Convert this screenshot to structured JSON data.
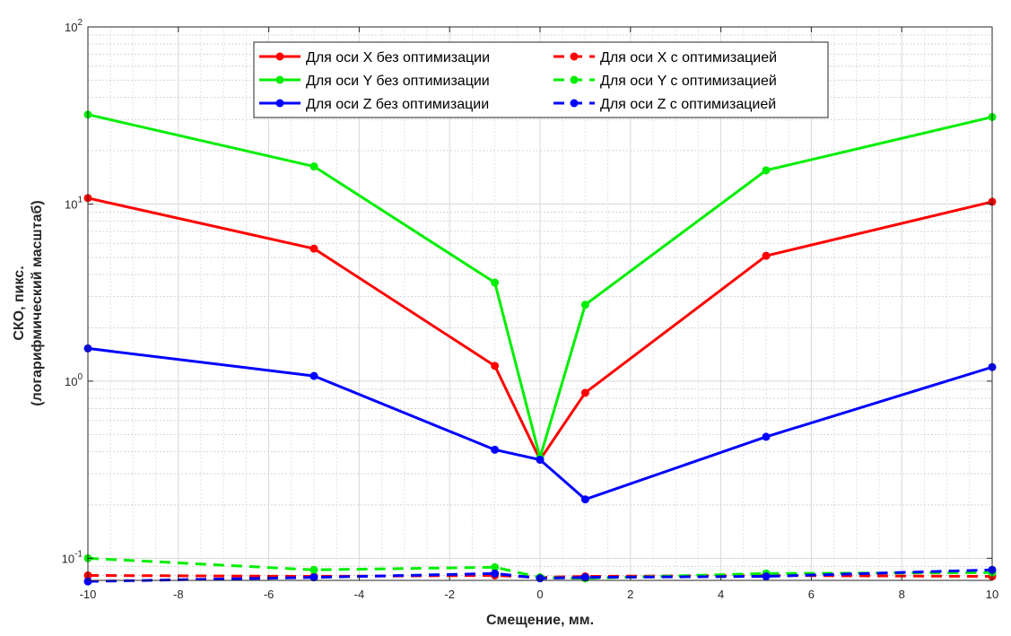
{
  "chart_data": {
    "type": "line",
    "title": "",
    "xlabel": "Смещение, мм.",
    "ylabel": [
      "СКО, пикс.",
      "(логарифмический масштаб)"
    ],
    "xlim": [
      -10,
      10
    ],
    "ylim": [
      0.075,
      100
    ],
    "yscale": "log",
    "grid": true,
    "minor_grid": true,
    "legend_position": "top-center",
    "x": [
      -10,
      -5,
      -1,
      0,
      1,
      5,
      10
    ],
    "x_ticks": [
      -10,
      -8,
      -6,
      -4,
      -2,
      0,
      2,
      4,
      6,
      8,
      10
    ],
    "y_ticks": [
      {
        "value": 0.1,
        "base": "10",
        "exp": "-1"
      },
      {
        "value": 1,
        "base": "10",
        "exp": "0"
      },
      {
        "value": 10,
        "base": "10",
        "exp": "1"
      },
      {
        "value": 100,
        "base": "10",
        "exp": "2"
      }
    ],
    "series": [
      {
        "name": "Для оси X без оптимизации",
        "color": "#ff0000",
        "dash": "solid",
        "values": [
          10.8,
          5.6,
          1.22,
          0.36,
          0.86,
          5.1,
          10.3
        ]
      },
      {
        "name": "Для оси X с оптимизацией",
        "color": "#ff0000",
        "dash": "dashed",
        "values": [
          0.08,
          0.079,
          0.08,
          0.078,
          0.079,
          0.08,
          0.079
        ]
      },
      {
        "name": "Для оси Y без оптимизации",
        "color": "#00ee00",
        "dash": "solid",
        "values": [
          32,
          16.3,
          3.6,
          0.37,
          2.7,
          15.5,
          31
        ]
      },
      {
        "name": "Для оси Y с оптимизацией",
        "color": "#00ee00",
        "dash": "dashed",
        "values": [
          0.1,
          0.086,
          0.089,
          0.078,
          0.077,
          0.082,
          0.083
        ]
      },
      {
        "name": "Для оси Z без оптимизации",
        "color": "#0000ff",
        "dash": "solid",
        "values": [
          1.53,
          1.07,
          0.41,
          0.36,
          0.215,
          0.485,
          1.2
        ]
      },
      {
        "name": "Для оси Z с оптимизацией",
        "color": "#0000ff",
        "dash": "dashed",
        "values": [
          0.074,
          0.078,
          0.082,
          0.077,
          0.078,
          0.079,
          0.086
        ]
      }
    ],
    "legend_order": [
      0,
      1,
      2,
      3,
      4,
      5
    ]
  }
}
